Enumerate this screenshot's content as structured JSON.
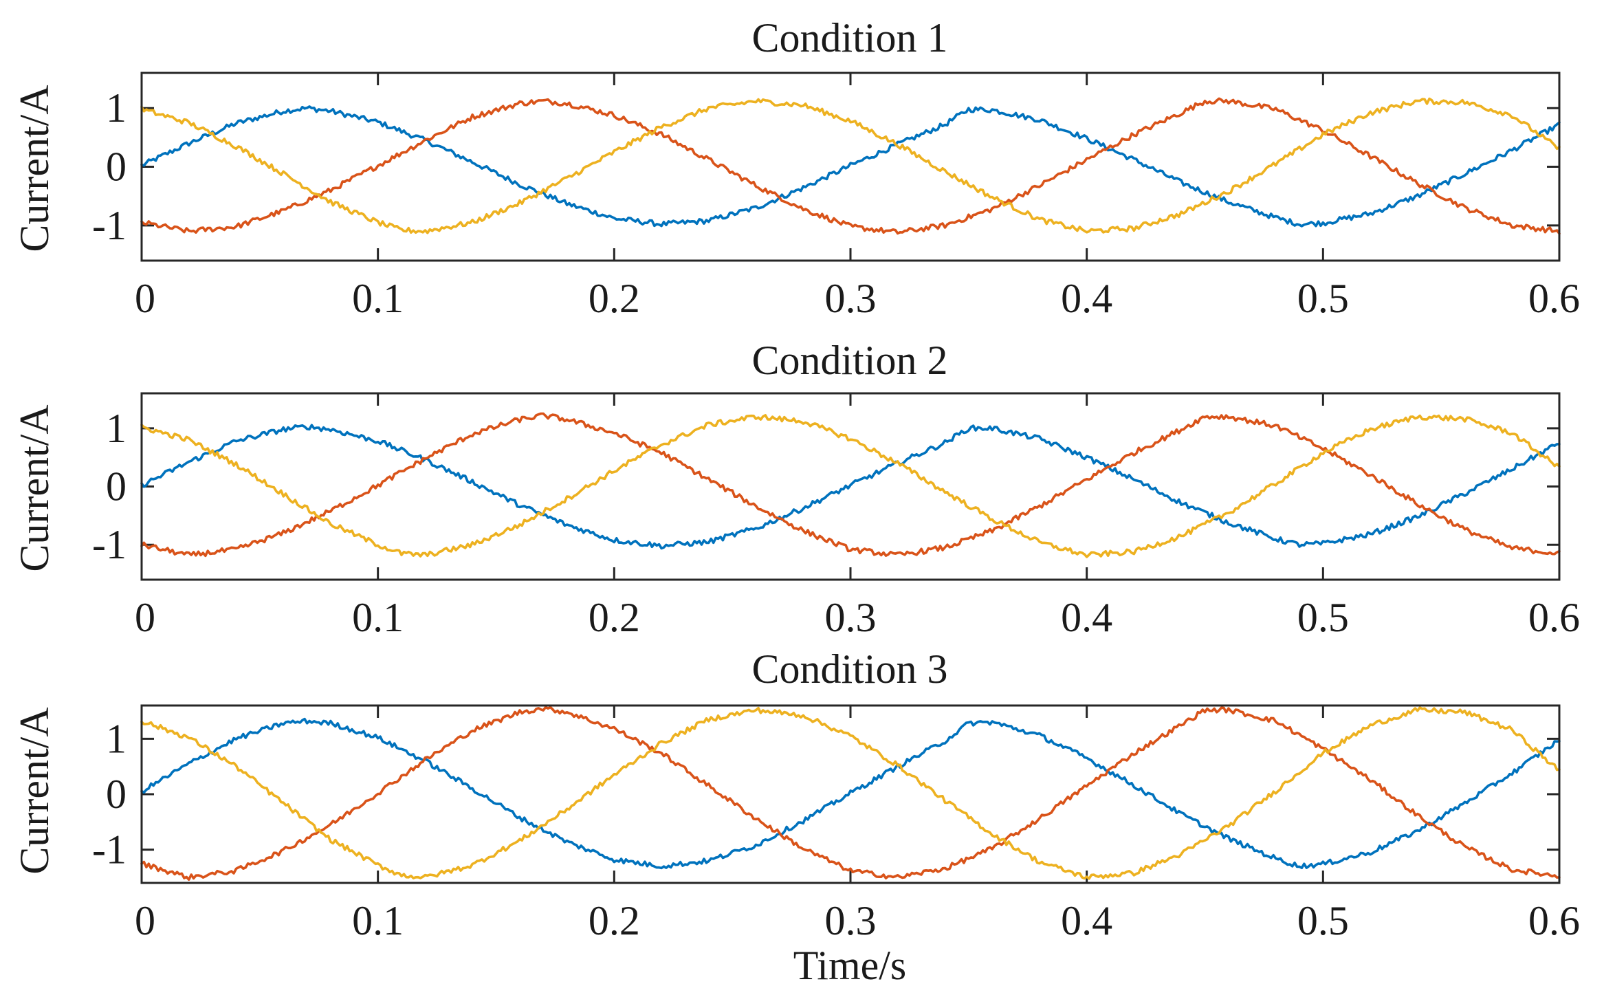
{
  "chart_data": [
    {
      "type": "line",
      "title": "Condition 1",
      "ylabel": "Current/A",
      "xlabel": "",
      "xlim": [
        0,
        0.6
      ],
      "ylim": [
        -1.6,
        1.6
      ],
      "xticks": [
        "0",
        "0.1",
        "0.2",
        "0.3",
        "0.4",
        "0.5",
        "0.6"
      ],
      "yticks": [
        "-1",
        "0",
        "1"
      ],
      "grid": false,
      "series": [
        {
          "color": "#0072BD",
          "x": [
            0,
            0.02,
            0.04,
            0.06,
            0.07,
            0.08,
            0.1,
            0.12,
            0.14,
            0.16,
            0.18,
            0.2,
            0.22,
            0.24,
            0.26,
            0.28,
            0.3,
            0.32,
            0.34,
            0.35,
            0.36,
            0.38,
            0.4,
            0.42,
            0.44,
            0.46,
            0.48,
            0.49,
            0.5,
            0.52,
            0.54,
            0.56,
            0.58,
            0.6
          ],
          "y": [
            0.02,
            0.4,
            0.74,
            0.95,
            1.0,
            0.95,
            0.76,
            0.45,
            0.08,
            -0.3,
            -0.63,
            -0.88,
            -0.98,
            -0.92,
            -0.7,
            -0.36,
            0.02,
            0.38,
            0.72,
            0.98,
            0.97,
            0.8,
            0.48,
            0.12,
            -0.27,
            -0.6,
            -0.87,
            -0.98,
            -0.96,
            -0.8,
            -0.5,
            -0.12,
            0.28,
            0.72
          ]
        },
        {
          "color": "#D95319",
          "x": [
            0,
            0.02,
            0.04,
            0.06,
            0.08,
            0.1,
            0.12,
            0.14,
            0.16,
            0.17,
            0.18,
            0.2,
            0.22,
            0.24,
            0.26,
            0.28,
            0.3,
            0.32,
            0.34,
            0.36,
            0.38,
            0.4,
            0.42,
            0.44,
            0.45,
            0.46,
            0.48,
            0.5,
            0.52,
            0.54,
            0.56,
            0.58,
            0.6
          ],
          "y": [
            -0.95,
            -1.1,
            -1.02,
            -0.75,
            -0.4,
            0.02,
            0.45,
            0.85,
            1.08,
            1.12,
            1.08,
            0.88,
            0.55,
            0.12,
            -0.32,
            -0.72,
            -1.02,
            -1.12,
            -1.0,
            -0.72,
            -0.32,
            0.12,
            0.55,
            0.92,
            1.12,
            1.12,
            0.98,
            0.62,
            0.18,
            -0.28,
            -0.7,
            -1.0,
            -1.1
          ]
        },
        {
          "color": "#EDB120",
          "x": [
            0,
            0.02,
            0.04,
            0.06,
            0.08,
            0.1,
            0.11,
            0.12,
            0.14,
            0.16,
            0.18,
            0.2,
            0.22,
            0.24,
            0.26,
            0.28,
            0.3,
            0.32,
            0.34,
            0.36,
            0.38,
            0.4,
            0.42,
            0.44,
            0.46,
            0.48,
            0.5,
            0.52,
            0.54,
            0.56,
            0.58,
            0.6
          ],
          "y": [
            0.98,
            0.75,
            0.35,
            -0.12,
            -0.6,
            -0.95,
            -1.08,
            -1.1,
            -0.95,
            -0.62,
            -0.2,
            0.25,
            0.68,
            1.0,
            1.12,
            1.05,
            0.78,
            0.38,
            -0.08,
            -0.52,
            -0.9,
            -1.1,
            -1.05,
            -0.8,
            -0.42,
            0.05,
            0.55,
            0.92,
            1.12,
            1.1,
            0.88,
            0.3
          ]
        }
      ]
    },
    {
      "type": "line",
      "title": "Condition 2",
      "ylabel": "Current/A",
      "xlabel": "",
      "xlim": [
        0,
        0.6
      ],
      "ylim": [
        -1.6,
        1.6
      ],
      "xticks": [
        "0",
        "0.1",
        "0.2",
        "0.3",
        "0.4",
        "0.5",
        "0.6"
      ],
      "yticks": [
        "-1",
        "0",
        "1"
      ],
      "grid": false,
      "series": [
        {
          "color": "#0072BD",
          "x": [
            0,
            0.02,
            0.04,
            0.06,
            0.07,
            0.08,
            0.1,
            0.12,
            0.14,
            0.16,
            0.18,
            0.2,
            0.22,
            0.24,
            0.26,
            0.28,
            0.3,
            0.32,
            0.34,
            0.35,
            0.36,
            0.38,
            0.4,
            0.42,
            0.44,
            0.46,
            0.48,
            0.49,
            0.5,
            0.52,
            0.54,
            0.56,
            0.58,
            0.6
          ],
          "y": [
            0.02,
            0.42,
            0.78,
            0.98,
            1.03,
            0.98,
            0.78,
            0.46,
            0.08,
            -0.32,
            -0.66,
            -0.92,
            -1.02,
            -0.95,
            -0.72,
            -0.37,
            0.02,
            0.4,
            0.75,
            1.0,
            1.0,
            0.82,
            0.5,
            0.12,
            -0.28,
            -0.62,
            -0.9,
            -1.0,
            -0.98,
            -0.82,
            -0.52,
            -0.12,
            0.3,
            0.75
          ]
        },
        {
          "color": "#D95319",
          "x": [
            0,
            0.02,
            0.04,
            0.06,
            0.08,
            0.1,
            0.12,
            0.14,
            0.16,
            0.17,
            0.18,
            0.2,
            0.22,
            0.24,
            0.26,
            0.28,
            0.3,
            0.32,
            0.34,
            0.36,
            0.38,
            0.4,
            0.42,
            0.44,
            0.45,
            0.46,
            0.48,
            0.5,
            0.52,
            0.54,
            0.56,
            0.58,
            0.6
          ],
          "y": [
            -1.0,
            -1.18,
            -1.08,
            -0.8,
            -0.42,
            0.02,
            0.48,
            0.9,
            1.15,
            1.22,
            1.15,
            0.92,
            0.58,
            0.12,
            -0.34,
            -0.76,
            -1.08,
            -1.18,
            -1.05,
            -0.76,
            -0.34,
            0.12,
            0.58,
            0.98,
            1.2,
            1.2,
            1.04,
            0.65,
            0.2,
            -0.3,
            -0.74,
            -1.06,
            -1.15
          ]
        },
        {
          "color": "#EDB120",
          "x": [
            0,
            0.02,
            0.04,
            0.06,
            0.08,
            0.1,
            0.11,
            0.12,
            0.14,
            0.16,
            0.18,
            0.2,
            0.22,
            0.24,
            0.26,
            0.28,
            0.3,
            0.32,
            0.34,
            0.36,
            0.38,
            0.4,
            0.42,
            0.44,
            0.46,
            0.48,
            0.5,
            0.52,
            0.54,
            0.56,
            0.58,
            0.6
          ],
          "y": [
            1.02,
            0.8,
            0.38,
            -0.13,
            -0.64,
            -1.0,
            -1.15,
            -1.18,
            -1.0,
            -0.66,
            -0.21,
            0.27,
            0.72,
            1.06,
            1.2,
            1.12,
            0.82,
            0.4,
            -0.09,
            -0.56,
            -0.96,
            -1.18,
            -1.12,
            -0.85,
            -0.45,
            0.05,
            0.58,
            0.98,
            1.2,
            1.16,
            0.92,
            0.32
          ]
        }
      ]
    },
    {
      "type": "line",
      "title": "Condition 3",
      "ylabel": "Current/A",
      "xlabel": "Time/s",
      "xlim": [
        0,
        0.6
      ],
      "ylim": [
        -1.6,
        1.6
      ],
      "xticks": [
        "0",
        "0.1",
        "0.2",
        "0.3",
        "0.4",
        "0.5",
        "0.6"
      ],
      "yticks": [
        "-1",
        "0",
        "1"
      ],
      "grid": false,
      "series": [
        {
          "color": "#0072BD",
          "x": [
            0,
            0.02,
            0.04,
            0.06,
            0.07,
            0.08,
            0.1,
            0.12,
            0.14,
            0.16,
            0.18,
            0.2,
            0.22,
            0.24,
            0.26,
            0.28,
            0.3,
            0.32,
            0.34,
            0.35,
            0.36,
            0.38,
            0.4,
            0.42,
            0.44,
            0.46,
            0.48,
            0.49,
            0.5,
            0.52,
            0.54,
            0.56,
            0.58,
            0.6
          ],
          "y": [
            0.05,
            0.55,
            1.0,
            1.28,
            1.32,
            1.28,
            1.02,
            0.6,
            0.1,
            -0.42,
            -0.86,
            -1.18,
            -1.3,
            -1.2,
            -0.92,
            -0.48,
            0.02,
            0.5,
            0.96,
            1.28,
            1.3,
            1.06,
            0.65,
            0.16,
            -0.36,
            -0.8,
            -1.16,
            -1.3,
            -1.26,
            -1.05,
            -0.66,
            -0.16,
            0.38,
            0.98
          ]
        },
        {
          "color": "#D95319",
          "x": [
            0,
            0.02,
            0.04,
            0.06,
            0.08,
            0.1,
            0.12,
            0.14,
            0.16,
            0.17,
            0.18,
            0.2,
            0.22,
            0.24,
            0.26,
            0.28,
            0.3,
            0.32,
            0.34,
            0.36,
            0.38,
            0.4,
            0.42,
            0.44,
            0.45,
            0.46,
            0.48,
            0.5,
            0.52,
            0.54,
            0.56,
            0.58,
            0.6
          ],
          "y": [
            -1.25,
            -1.5,
            -1.38,
            -1.02,
            -0.55,
            0.02,
            0.62,
            1.15,
            1.48,
            1.55,
            1.48,
            1.18,
            0.74,
            0.15,
            -0.44,
            -0.98,
            -1.38,
            -1.5,
            -1.34,
            -0.98,
            -0.44,
            0.15,
            0.74,
            1.25,
            1.52,
            1.52,
            1.32,
            0.82,
            0.26,
            -0.38,
            -0.95,
            -1.36,
            -1.48
          ]
        },
        {
          "color": "#EDB120",
          "x": [
            0,
            0.02,
            0.04,
            0.06,
            0.08,
            0.1,
            0.11,
            0.12,
            0.14,
            0.16,
            0.18,
            0.2,
            0.22,
            0.24,
            0.26,
            0.28,
            0.3,
            0.32,
            0.34,
            0.36,
            0.38,
            0.4,
            0.42,
            0.44,
            0.46,
            0.48,
            0.5,
            0.52,
            0.54,
            0.56,
            0.58,
            0.6
          ],
          "y": [
            1.32,
            1.02,
            0.5,
            -0.16,
            -0.82,
            -1.28,
            -1.46,
            -1.5,
            -1.28,
            -0.84,
            -0.27,
            0.35,
            0.92,
            1.35,
            1.52,
            1.42,
            1.05,
            0.52,
            -0.11,
            -0.72,
            -1.22,
            -1.5,
            -1.42,
            -1.08,
            -0.57,
            0.06,
            0.74,
            1.24,
            1.52,
            1.48,
            1.16,
            0.42
          ]
        }
      ]
    }
  ]
}
